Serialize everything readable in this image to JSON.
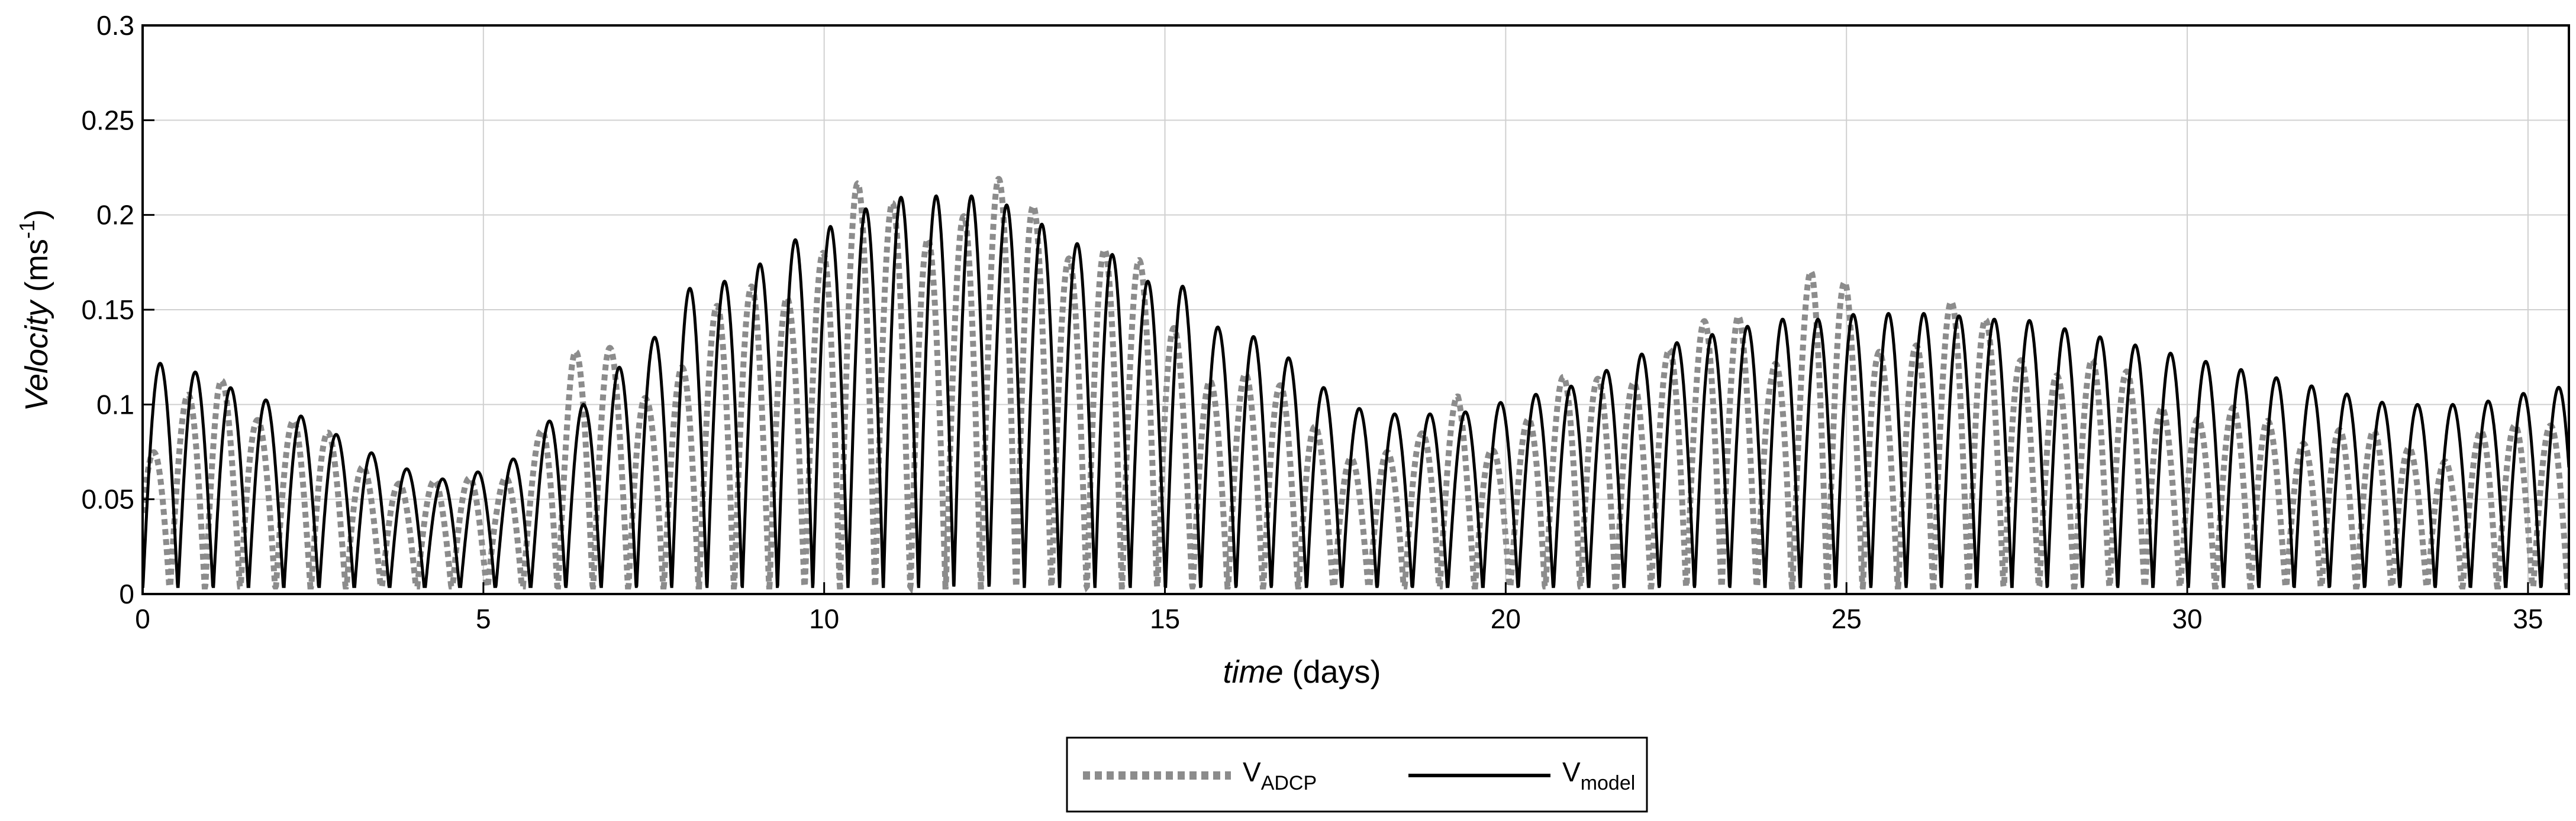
{
  "chart_data": {
    "type": "line",
    "xlabel": {
      "italic": "time",
      "rest": " (days)"
    },
    "ylabel": {
      "italic": "Velocity",
      "rest": " (ms",
      "sup": "-1",
      "close": ")"
    },
    "xlim": [
      0,
      35.6
    ],
    "ylim": [
      0,
      0.3
    ],
    "xticks": [
      0,
      5,
      10,
      15,
      20,
      25,
      30,
      35
    ],
    "xtick_labels": [
      "0",
      "5",
      "10",
      "15",
      "20",
      "25",
      "30",
      "35"
    ],
    "yticks": [
      0,
      0.05,
      0.1,
      0.15,
      0.2,
      0.25,
      0.3
    ],
    "ytick_labels": [
      "0",
      "0.05",
      "0.1",
      "0.15",
      "0.2",
      "0.25",
      "0.3"
    ],
    "grid": true,
    "legend_position": "bottom-center",
    "tidal_period_days": 0.5175,
    "series": [
      {
        "name": "V",
        "name_sub": "ADCP",
        "style": "dotted",
        "color": "#8c8c8c",
        "x": [
          0,
          1.1,
          1.9,
          2.8,
          3.6,
          4.4,
          5.2,
          5.7,
          6.3,
          6.8,
          7.4,
          8.0,
          8.6,
          9.2,
          9.8,
          10.3,
          10.9,
          11.4,
          11.9,
          12.4,
          12.9,
          13.4,
          13.9,
          14.4,
          14.9,
          15.5,
          16.1,
          16.7,
          17.4,
          18.1,
          18.8,
          19.3,
          19.8,
          20.4,
          21.0,
          21.6,
          22.2,
          22.8,
          23.4,
          23.9,
          24.5,
          25.0,
          25.6,
          26.2,
          26.6,
          27.1,
          27.7,
          28.4,
          29.1,
          29.9,
          30.7,
          31.5,
          32.3,
          33.0,
          33.7,
          34.4,
          35.0,
          35.6
        ],
        "y": [
          0.07,
          0.13,
          0.1,
          0.085,
          0.07,
          0.06,
          0.065,
          0.09,
          0.13,
          0.135,
          0.12,
          0.14,
          0.16,
          0.175,
          0.195,
          0.22,
          0.215,
          0.22,
          0.225,
          0.22,
          0.22,
          0.21,
          0.21,
          0.19,
          0.16,
          0.135,
          0.13,
          0.11,
          0.09,
          0.08,
          0.085,
          0.115,
          0.09,
          0.1,
          0.12,
          0.13,
          0.135,
          0.14,
          0.165,
          0.14,
          0.18,
          0.165,
          0.14,
          0.16,
          0.16,
          0.145,
          0.14,
          0.13,
          0.12,
          0.11,
          0.1,
          0.09,
          0.1,
          0.08,
          0.08,
          0.1,
          0.085,
          0.1
        ]
      },
      {
        "name": "V",
        "name_sub": "model",
        "style": "solid",
        "color": "#000000",
        "x": [
          0,
          0.6,
          1.2,
          2.0,
          2.8,
          3.6,
          4.3,
          5.0,
          5.7,
          6.1,
          6.5,
          7.0,
          7.5,
          8.1,
          8.6,
          9.1,
          9.7,
          10.2,
          10.7,
          11.2,
          11.7,
          12.2,
          12.7,
          13.2,
          13.7,
          14.2,
          14.7,
          15.2,
          15.8,
          16.4,
          17.0,
          17.6,
          18.2,
          18.8,
          19.3,
          19.8,
          20.4,
          21.0,
          21.6,
          22.2,
          22.8,
          23.4,
          24.0,
          24.6,
          25.2,
          25.8,
          26.4,
          27.0,
          27.6,
          28.2,
          28.8,
          29.4,
          30.0,
          30.6,
          31.2,
          31.8,
          32.4,
          33.0,
          33.6,
          34.2,
          34.8,
          35.6
        ],
        "y": [
          0.123,
          0.12,
          0.11,
          0.1,
          0.085,
          0.07,
          0.06,
          0.065,
          0.075,
          0.1,
          0.1,
          0.12,
          0.135,
          0.165,
          0.165,
          0.175,
          0.19,
          0.195,
          0.205,
          0.21,
          0.21,
          0.21,
          0.205,
          0.195,
          0.185,
          0.18,
          0.165,
          0.165,
          0.14,
          0.135,
          0.12,
          0.1,
          0.095,
          0.095,
          0.095,
          0.1,
          0.105,
          0.11,
          0.12,
          0.13,
          0.135,
          0.14,
          0.145,
          0.145,
          0.148,
          0.148,
          0.148,
          0.145,
          0.145,
          0.14,
          0.135,
          0.13,
          0.125,
          0.12,
          0.115,
          0.11,
          0.105,
          0.1,
          0.1,
          0.1,
          0.105,
          0.11
        ]
      }
    ]
  }
}
